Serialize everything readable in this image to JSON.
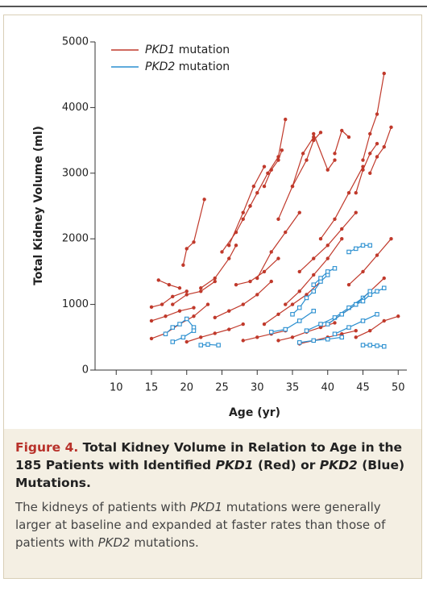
{
  "chart_data": {
    "type": "line",
    "xlabel": "Age (yr)",
    "ylabel": "Total Kidney Volume (ml)",
    "xlim": [
      7,
      51
    ],
    "xticks": [
      10,
      15,
      20,
      25,
      30,
      35,
      40,
      45,
      50
    ],
    "ylim": [
      0,
      5000
    ],
    "yticks": [
      0,
      1000,
      2000,
      3000,
      4000,
      5000
    ],
    "legend": "upper left",
    "series": [
      {
        "name": "PKD1 mutation",
        "color": "#c0392b",
        "marker": "circle",
        "patients": [
          {
            "x": [
              15,
              17,
              19,
              21,
              23
            ],
            "values": [
              480,
              560,
              700,
              820,
              1000
            ]
          },
          {
            "x": [
              15,
              16.5,
              18,
              20
            ],
            "values": [
              960,
              1000,
              1120,
              1200
            ]
          },
          {
            "x": [
              16,
              17.5,
              19
            ],
            "values": [
              1370,
              1300,
              1250
            ]
          },
          {
            "x": [
              19.5,
              20,
              21,
              22.5
            ],
            "values": [
              1600,
              1850,
              1950,
              2600
            ]
          },
          {
            "x": [
              18,
              20,
              22,
              24
            ],
            "values": [
              1000,
              1150,
              1200,
              1350
            ]
          },
          {
            "x": [
              20,
              22,
              24,
              26,
              28
            ],
            "values": [
              430,
              500,
              560,
              620,
              700
            ]
          },
          {
            "x": [
              22,
              24,
              26,
              27
            ],
            "values": [
              1250,
              1400,
              1700,
              1900
            ]
          },
          {
            "x": [
              25,
              27,
              28,
              29
            ],
            "values": [
              1800,
              2100,
              2300,
              2500
            ]
          },
          {
            "x": [
              26,
              28,
              29.5,
              31
            ],
            "values": [
              1900,
              2400,
              2800,
              3100
            ]
          },
          {
            "x": [
              29,
              30,
              31.5,
              33,
              34
            ],
            "values": [
              2500,
              2700,
              3000,
              3250,
              3820
            ]
          },
          {
            "x": [
              31,
              32,
              33,
              33.5
            ],
            "values": [
              2800,
              3050,
              3200,
              3350
            ]
          },
          {
            "x": [
              24,
              26,
              28,
              30,
              32
            ],
            "values": [
              800,
              900,
              1000,
              1150,
              1350
            ]
          },
          {
            "x": [
              27,
              29,
              31,
              33
            ],
            "values": [
              1300,
              1350,
              1500,
              1700
            ]
          },
          {
            "x": [
              30,
              32,
              34,
              36
            ],
            "values": [
              1400,
              1800,
              2100,
              2400
            ]
          },
          {
            "x": [
              33,
              35,
              36.5,
              38
            ],
            "values": [
              2300,
              2800,
              3300,
              3550
            ]
          },
          {
            "x": [
              35,
              37,
              38,
              39
            ],
            "values": [
              2800,
              3200,
              3500,
              3620
            ]
          },
          {
            "x": [
              38,
              40,
              41
            ],
            "values": [
              3600,
              3050,
              3200
            ]
          },
          {
            "x": [
              41,
              42,
              43
            ],
            "values": [
              3300,
              3650,
              3550
            ]
          },
          {
            "x": [
              31,
              33,
              35,
              37,
              39
            ],
            "values": [
              700,
              850,
              1000,
              1150,
              1350
            ]
          },
          {
            "x": [
              34,
              36,
              38,
              40,
              42
            ],
            "values": [
              1000,
              1200,
              1450,
              1700,
              2000
            ]
          },
          {
            "x": [
              36,
              38,
              40,
              42,
              44
            ],
            "values": [
              1500,
              1700,
              1900,
              2150,
              2400
            ]
          },
          {
            "x": [
              39,
              41,
              43,
              45
            ],
            "values": [
              2000,
              2300,
              2700,
              3100
            ]
          },
          {
            "x": [
              44,
              45,
              46,
              47
            ],
            "values": [
              2700,
              3050,
              3300,
              3450
            ]
          },
          {
            "x": [
              45,
              46,
              47,
              48
            ],
            "values": [
              3200,
              3600,
              3900,
              4520
            ]
          },
          {
            "x": [
              46,
              47,
              48,
              49
            ],
            "values": [
              3000,
              3250,
              3400,
              3700
            ]
          },
          {
            "x": [
              40,
              42,
              44,
              46,
              48
            ],
            "values": [
              700,
              850,
              1000,
              1200,
              1400
            ]
          },
          {
            "x": [
              43,
              45,
              47,
              49
            ],
            "values": [
              1300,
              1500,
              1750,
              2000
            ]
          },
          {
            "x": [
              28,
              30,
              32,
              34
            ],
            "values": [
              450,
              500,
              550,
              600
            ]
          },
          {
            "x": [
              36,
              38,
              40,
              42,
              44
            ],
            "values": [
              400,
              450,
              500,
              550,
              600
            ]
          },
          {
            "x": [
              44,
              46,
              48,
              50
            ],
            "values": [
              500,
              600,
              750,
              820
            ]
          },
          {
            "x": [
              15,
              17,
              19,
              21
            ],
            "values": [
              750,
              820,
              900,
              950
            ]
          },
          {
            "x": [
              33,
              35,
              37,
              39,
              41
            ],
            "values": [
              450,
              500,
              580,
              650,
              720
            ]
          }
        ]
      },
      {
        "name": "PKD2 mutation",
        "color": "#2a8fd0",
        "marker": "square",
        "patients": [
          {
            "x": [
              17,
              18,
              19,
              20,
              21
            ],
            "values": [
              550,
              650,
              700,
              780,
              650
            ]
          },
          {
            "x": [
              18,
              19.5,
              21
            ],
            "values": [
              430,
              500,
              600
            ]
          },
          {
            "x": [
              22,
              23,
              24.5
            ],
            "values": [
              380,
              390,
              380
            ]
          },
          {
            "x": [
              32,
              34,
              36,
              38
            ],
            "values": [
              580,
              620,
              750,
              900
            ]
          },
          {
            "x": [
              35,
              36,
              37,
              38,
              39,
              40
            ],
            "values": [
              850,
              950,
              1100,
              1200,
              1350,
              1450
            ]
          },
          {
            "x": [
              38,
              39,
              40,
              41
            ],
            "values": [
              1300,
              1400,
              1500,
              1550
            ]
          },
          {
            "x": [
              37,
              39,
              41,
              43,
              45
            ],
            "values": [
              600,
              700,
              800,
              950,
              1100
            ]
          },
          {
            "x": [
              40,
              42,
              44,
              46
            ],
            "values": [
              700,
              850,
              1000,
              1200
            ]
          },
          {
            "x": [
              43,
              44,
              45,
              46
            ],
            "values": [
              1800,
              1850,
              1900,
              1900
            ]
          },
          {
            "x": [
              36,
              38,
              40,
              42
            ],
            "values": [
              420,
              450,
              470,
              500
            ]
          },
          {
            "x": [
              45,
              46,
              47,
              48
            ],
            "values": [
              380,
              380,
              370,
              360
            ]
          },
          {
            "x": [
              44,
              45,
              46,
              47,
              48
            ],
            "values": [
              1000,
              1050,
              1150,
              1200,
              1250
            ]
          },
          {
            "x": [
              41,
              43,
              45,
              47
            ],
            "values": [
              550,
              650,
              750,
              850
            ]
          }
        ]
      }
    ],
    "caption": {
      "label": "Figure 4.",
      "title": "Total Kidney Volume in Relation to Age in the 185 Patients with Identified PKD1 (Red) or PKD2 (Blue) Mutations.",
      "body": "The kidneys of patients with PKD1 mutations were generally larger at baseline and expanded at faster rates than those of patients with PKD2 mutations."
    }
  }
}
